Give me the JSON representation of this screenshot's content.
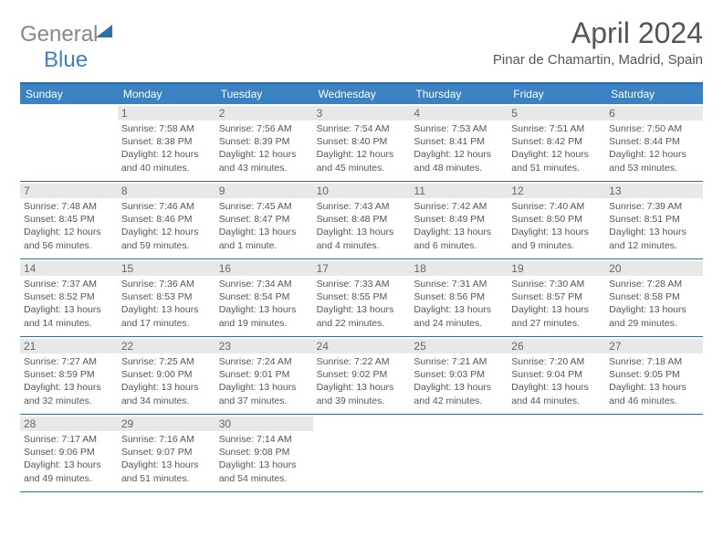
{
  "brand": {
    "general": "General",
    "blue": "Blue"
  },
  "title": "April 2024",
  "location": "Pinar de Chamartin, Madrid, Spain",
  "header_bg": "#3b82c4",
  "border_color": "#2f6fa8",
  "dayband_bg": "#e8e8e8",
  "day_names": [
    "Sunday",
    "Monday",
    "Tuesday",
    "Wednesday",
    "Thursday",
    "Friday",
    "Saturday"
  ],
  "weeks": [
    [
      null,
      {
        "n": "1",
        "sr": "Sunrise: 7:58 AM",
        "ss": "Sunset: 8:38 PM",
        "d1": "Daylight: 12 hours",
        "d2": "and 40 minutes."
      },
      {
        "n": "2",
        "sr": "Sunrise: 7:56 AM",
        "ss": "Sunset: 8:39 PM",
        "d1": "Daylight: 12 hours",
        "d2": "and 43 minutes."
      },
      {
        "n": "3",
        "sr": "Sunrise: 7:54 AM",
        "ss": "Sunset: 8:40 PM",
        "d1": "Daylight: 12 hours",
        "d2": "and 45 minutes."
      },
      {
        "n": "4",
        "sr": "Sunrise: 7:53 AM",
        "ss": "Sunset: 8:41 PM",
        "d1": "Daylight: 12 hours",
        "d2": "and 48 minutes."
      },
      {
        "n": "5",
        "sr": "Sunrise: 7:51 AM",
        "ss": "Sunset: 8:42 PM",
        "d1": "Daylight: 12 hours",
        "d2": "and 51 minutes."
      },
      {
        "n": "6",
        "sr": "Sunrise: 7:50 AM",
        "ss": "Sunset: 8:44 PM",
        "d1": "Daylight: 12 hours",
        "d2": "and 53 minutes."
      }
    ],
    [
      {
        "n": "7",
        "sr": "Sunrise: 7:48 AM",
        "ss": "Sunset: 8:45 PM",
        "d1": "Daylight: 12 hours",
        "d2": "and 56 minutes."
      },
      {
        "n": "8",
        "sr": "Sunrise: 7:46 AM",
        "ss": "Sunset: 8:46 PM",
        "d1": "Daylight: 12 hours",
        "d2": "and 59 minutes."
      },
      {
        "n": "9",
        "sr": "Sunrise: 7:45 AM",
        "ss": "Sunset: 8:47 PM",
        "d1": "Daylight: 13 hours",
        "d2": "and 1 minute."
      },
      {
        "n": "10",
        "sr": "Sunrise: 7:43 AM",
        "ss": "Sunset: 8:48 PM",
        "d1": "Daylight: 13 hours",
        "d2": "and 4 minutes."
      },
      {
        "n": "11",
        "sr": "Sunrise: 7:42 AM",
        "ss": "Sunset: 8:49 PM",
        "d1": "Daylight: 13 hours",
        "d2": "and 6 minutes."
      },
      {
        "n": "12",
        "sr": "Sunrise: 7:40 AM",
        "ss": "Sunset: 8:50 PM",
        "d1": "Daylight: 13 hours",
        "d2": "and 9 minutes."
      },
      {
        "n": "13",
        "sr": "Sunrise: 7:39 AM",
        "ss": "Sunset: 8:51 PM",
        "d1": "Daylight: 13 hours",
        "d2": "and 12 minutes."
      }
    ],
    [
      {
        "n": "14",
        "sr": "Sunrise: 7:37 AM",
        "ss": "Sunset: 8:52 PM",
        "d1": "Daylight: 13 hours",
        "d2": "and 14 minutes."
      },
      {
        "n": "15",
        "sr": "Sunrise: 7:36 AM",
        "ss": "Sunset: 8:53 PM",
        "d1": "Daylight: 13 hours",
        "d2": "and 17 minutes."
      },
      {
        "n": "16",
        "sr": "Sunrise: 7:34 AM",
        "ss": "Sunset: 8:54 PM",
        "d1": "Daylight: 13 hours",
        "d2": "and 19 minutes."
      },
      {
        "n": "17",
        "sr": "Sunrise: 7:33 AM",
        "ss": "Sunset: 8:55 PM",
        "d1": "Daylight: 13 hours",
        "d2": "and 22 minutes."
      },
      {
        "n": "18",
        "sr": "Sunrise: 7:31 AM",
        "ss": "Sunset: 8:56 PM",
        "d1": "Daylight: 13 hours",
        "d2": "and 24 minutes."
      },
      {
        "n": "19",
        "sr": "Sunrise: 7:30 AM",
        "ss": "Sunset: 8:57 PM",
        "d1": "Daylight: 13 hours",
        "d2": "and 27 minutes."
      },
      {
        "n": "20",
        "sr": "Sunrise: 7:28 AM",
        "ss": "Sunset: 8:58 PM",
        "d1": "Daylight: 13 hours",
        "d2": "and 29 minutes."
      }
    ],
    [
      {
        "n": "21",
        "sr": "Sunrise: 7:27 AM",
        "ss": "Sunset: 8:59 PM",
        "d1": "Daylight: 13 hours",
        "d2": "and 32 minutes."
      },
      {
        "n": "22",
        "sr": "Sunrise: 7:25 AM",
        "ss": "Sunset: 9:00 PM",
        "d1": "Daylight: 13 hours",
        "d2": "and 34 minutes."
      },
      {
        "n": "23",
        "sr": "Sunrise: 7:24 AM",
        "ss": "Sunset: 9:01 PM",
        "d1": "Daylight: 13 hours",
        "d2": "and 37 minutes."
      },
      {
        "n": "24",
        "sr": "Sunrise: 7:22 AM",
        "ss": "Sunset: 9:02 PM",
        "d1": "Daylight: 13 hours",
        "d2": "and 39 minutes."
      },
      {
        "n": "25",
        "sr": "Sunrise: 7:21 AM",
        "ss": "Sunset: 9:03 PM",
        "d1": "Daylight: 13 hours",
        "d2": "and 42 minutes."
      },
      {
        "n": "26",
        "sr": "Sunrise: 7:20 AM",
        "ss": "Sunset: 9:04 PM",
        "d1": "Daylight: 13 hours",
        "d2": "and 44 minutes."
      },
      {
        "n": "27",
        "sr": "Sunrise: 7:18 AM",
        "ss": "Sunset: 9:05 PM",
        "d1": "Daylight: 13 hours",
        "d2": "and 46 minutes."
      }
    ],
    [
      {
        "n": "28",
        "sr": "Sunrise: 7:17 AM",
        "ss": "Sunset: 9:06 PM",
        "d1": "Daylight: 13 hours",
        "d2": "and 49 minutes."
      },
      {
        "n": "29",
        "sr": "Sunrise: 7:16 AM",
        "ss": "Sunset: 9:07 PM",
        "d1": "Daylight: 13 hours",
        "d2": "and 51 minutes."
      },
      {
        "n": "30",
        "sr": "Sunrise: 7:14 AM",
        "ss": "Sunset: 9:08 PM",
        "d1": "Daylight: 13 hours",
        "d2": "and 54 minutes."
      },
      null,
      null,
      null,
      null
    ]
  ]
}
